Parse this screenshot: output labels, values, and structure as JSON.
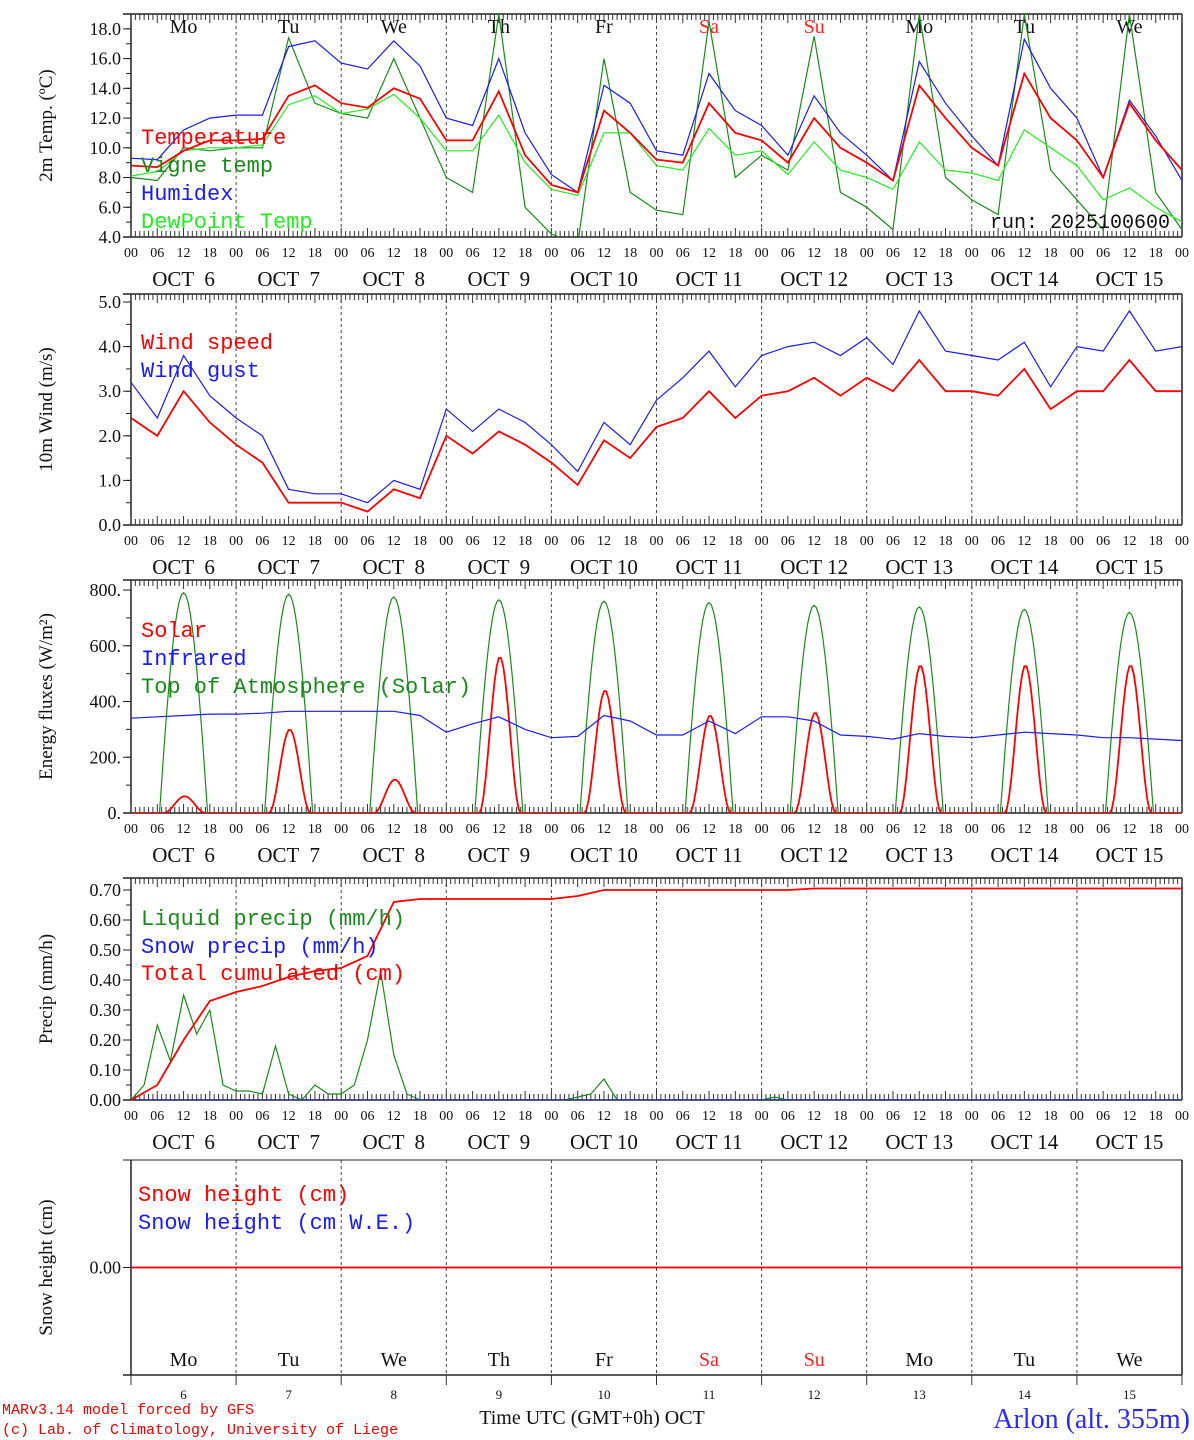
{
  "days": {
    "names": [
      "Mo",
      "Tu",
      "We",
      "Th",
      "Fr",
      "Sa",
      "Su",
      "Mo",
      "Tu",
      "We"
    ],
    "weekend": [
      false,
      false,
      false,
      false,
      false,
      true,
      true,
      false,
      false,
      false
    ],
    "dates": [
      "6",
      "7",
      "8",
      "9",
      "10",
      "11",
      "12",
      "13",
      "14",
      "15"
    ],
    "month": "OCT",
    "date_labels": [
      "OCT  6",
      "OCT  7",
      "OCT  8",
      "OCT  9",
      "OCT 10",
      "OCT 11",
      "OCT 12",
      "OCT 13",
      "OCT 14",
      "OCT 15"
    ]
  },
  "hour_labels": [
    "00",
    "06",
    "12",
    "18"
  ],
  "run_label": "run: 2025100600",
  "footer": {
    "model": "MARv3.14 model forced by GFS",
    "copyright": "(c) Lab. of Climatology, University of Liege",
    "xlabel": "Time UTC (GMT+0h) OCT",
    "station": "Arlon (alt. 355m)"
  },
  "colors": {
    "red": "#ff0000",
    "green": "#1a8a1a",
    "blue": "#1a1aff",
    "lime": "#22ee22",
    "weekend": "#ff2020",
    "day": "#111111"
  },
  "chart_data": [
    {
      "type": "line",
      "title": "",
      "ylabel": "2m Temp. (ºC)",
      "ylim": [
        4,
        19
      ],
      "yticks": [
        "4.0",
        "6.0",
        "8.0",
        "10.0",
        "12.0",
        "14.0",
        "16.0",
        "18.0"
      ],
      "ytick_values": [
        4,
        6,
        8,
        10,
        12,
        14,
        16,
        18
      ],
      "x_step_hours": 6,
      "series": [
        {
          "name": "Vigne temp",
          "color": "green",
          "values": [
            8.0,
            7.8,
            10.0,
            9.8,
            10.0,
            10.0,
            17.4,
            13.0,
            12.3,
            12.0,
            16.0,
            12.0,
            8.0,
            7.0,
            19.0,
            6.0,
            4.2,
            3.5,
            16.0,
            7.0,
            5.8,
            5.5,
            18.5,
            8.0,
            9.5,
            8.5,
            17.5,
            7.0,
            6.0,
            4.5,
            19.0,
            8.0,
            6.5,
            5.5,
            19.0,
            8.5,
            6.5,
            4.5,
            19.0,
            7.0,
            4.5
          ]
        },
        {
          "name": "DewPoint Temp",
          "color": "lime",
          "values": [
            8.1,
            8.4,
            9.8,
            10.0,
            10.0,
            10.2,
            12.9,
            13.5,
            12.3,
            12.6,
            13.6,
            12.0,
            9.8,
            9.8,
            12.2,
            9.0,
            7.2,
            6.8,
            11.0,
            11.0,
            8.8,
            8.5,
            11.3,
            9.5,
            9.8,
            8.2,
            10.4,
            8.5,
            8.0,
            7.2,
            10.4,
            8.5,
            8.3,
            7.8,
            11.2,
            10.0,
            8.8,
            6.5,
            7.3,
            6.0,
            5.0
          ]
        },
        {
          "name": "Humidex",
          "color": "blue",
          "values": [
            9.3,
            9.2,
            11.2,
            12.0,
            12.2,
            12.2,
            16.8,
            17.2,
            15.7,
            15.3,
            17.2,
            15.5,
            12.0,
            11.5,
            16.0,
            11.0,
            8.2,
            7.0,
            14.2,
            13.0,
            9.8,
            9.5,
            15.0,
            12.5,
            11.5,
            9.5,
            13.5,
            11.0,
            9.5,
            7.8,
            15.8,
            13.0,
            10.8,
            8.8,
            17.3,
            14.0,
            12.0,
            8.0,
            13.2,
            10.8,
            7.8
          ]
        },
        {
          "name": "Temperature",
          "color": "red",
          "values": [
            8.8,
            8.7,
            9.8,
            10.5,
            10.5,
            10.6,
            13.5,
            14.2,
            13.0,
            12.7,
            14.0,
            13.3,
            10.5,
            10.5,
            13.8,
            9.5,
            7.5,
            7.0,
            12.5,
            11.0,
            9.2,
            9.0,
            13.0,
            11.0,
            10.5,
            9.0,
            12.0,
            10.0,
            9.0,
            7.8,
            14.2,
            12.0,
            10.0,
            8.8,
            15.0,
            12.0,
            10.5,
            8.0,
            13.0,
            10.5,
            8.5
          ]
        }
      ],
      "legend_order": [
        "Temperature",
        "Vigne temp",
        "Humidex",
        "DewPoint Temp"
      ]
    },
    {
      "type": "line",
      "ylabel": "10m Wind (m/s)",
      "ylim": [
        0,
        5.18
      ],
      "yticks": [
        "0.0",
        "1.0",
        "2.0",
        "3.0",
        "4.0",
        "5.0"
      ],
      "ytick_values": [
        0,
        1,
        2,
        3,
        4,
        5
      ],
      "x_step_hours": 6,
      "series": [
        {
          "name": "Wind gust",
          "color": "blue",
          "values": [
            3.2,
            2.4,
            3.8,
            2.9,
            2.4,
            2.0,
            0.8,
            0.7,
            0.7,
            0.5,
            1.0,
            0.8,
            2.6,
            2.1,
            2.6,
            2.3,
            1.8,
            1.2,
            2.3,
            1.8,
            2.8,
            3.3,
            3.9,
            3.1,
            3.8,
            4.0,
            4.1,
            3.8,
            4.2,
            3.6,
            4.8,
            3.9,
            3.8,
            3.7,
            4.1,
            3.1,
            4.0,
            3.9,
            4.8,
            3.9,
            4.0
          ]
        },
        {
          "name": "Wind speed",
          "color": "red",
          "values": [
            2.4,
            2.0,
            3.0,
            2.3,
            1.8,
            1.4,
            0.5,
            0.5,
            0.5,
            0.3,
            0.8,
            0.6,
            2.0,
            1.6,
            2.1,
            1.8,
            1.4,
            0.9,
            1.9,
            1.5,
            2.2,
            2.4,
            3.0,
            2.4,
            2.9,
            3.0,
            3.3,
            2.9,
            3.3,
            3.0,
            3.7,
            3.0,
            3.0,
            2.9,
            3.5,
            2.6,
            3.0,
            3.0,
            3.7,
            3.0,
            3.0
          ]
        }
      ],
      "legend_order": [
        "Wind speed",
        "Wind gust"
      ]
    },
    {
      "type": "line",
      "ylabel": "Energy fluxes (W/m²)",
      "ylim": [
        0,
        836
      ],
      "yticks": [
        "0.",
        "200.",
        "400.",
        "600.",
        "800."
      ],
      "ytick_values": [
        0,
        200,
        400,
        600,
        800
      ],
      "x_step_hours": 6,
      "series": [
        {
          "name": "Top of Atmosphere (Solar)",
          "color": "green",
          "daily_peak": [
            790,
            785,
            775,
            765,
            760,
            755,
            745,
            740,
            730,
            720
          ],
          "daylight_hours": [
            6.5,
            17.5
          ],
          "shape_power": 1
        },
        {
          "name": "Solar",
          "color": "red",
          "daily_peak": [
            60,
            300,
            120,
            560,
            440,
            350,
            360,
            530,
            530,
            530
          ],
          "daylight_hours": [
            7.5,
            17
          ],
          "shape_power": 2
        },
        {
          "name": "Infrared",
          "color": "blue",
          "values": [
            340,
            345,
            350,
            355,
            355,
            358,
            365,
            365,
            365,
            365,
            365,
            350,
            290,
            320,
            345,
            300,
            270,
            275,
            350,
            330,
            280,
            280,
            330,
            285,
            345,
            345,
            330,
            280,
            275,
            265,
            285,
            275,
            270,
            280,
            290,
            285,
            280,
            270,
            270,
            265,
            260
          ]
        }
      ],
      "legend_order": [
        "Solar",
        "Infrared",
        "Top of Atmosphere (Solar)"
      ]
    },
    {
      "type": "line",
      "ylabel": "Precip (mm/h)",
      "ylim": [
        0,
        0.74
      ],
      "yticks": [
        "0.00",
        "0.10",
        "0.20",
        "0.30",
        "0.40",
        "0.50",
        "0.60",
        "0.70"
      ],
      "ytick_values": [
        0,
        0.1,
        0.2,
        0.3,
        0.4,
        0.5,
        0.6,
        0.7
      ],
      "series": [
        {
          "name": "Liquid precip (mm/h)",
          "color": "green",
          "x_step_hours": 3,
          "values": [
            0,
            0.05,
            0.25,
            0.13,
            0.35,
            0.22,
            0.3,
            0.05,
            0.03,
            0.03,
            0.02,
            0.18,
            0.02,
            0,
            0.05,
            0.02,
            0.02,
            0.05,
            0.2,
            0.43,
            0.15,
            0.02,
            0,
            0,
            0,
            0,
            0,
            0,
            0,
            0,
            0,
            0,
            0,
            0,
            0.01,
            0.02,
            0.07,
            0,
            0,
            0,
            0,
            0,
            0,
            0,
            0,
            0,
            0,
            0,
            0,
            0.01,
            0,
            0,
            0,
            0,
            0,
            0,
            0,
            0,
            0,
            0,
            0,
            0,
            0,
            0,
            0,
            0,
            0,
            0,
            0,
            0,
            0,
            0,
            0,
            0,
            0,
            0,
            0,
            0,
            0,
            0,
            0
          ]
        },
        {
          "name": "Snow precip (mm/h)",
          "color": "blue",
          "x_step_hours": 240,
          "values": [
            0,
            0
          ]
        },
        {
          "name": "Total cumulated (cm)",
          "color": "red",
          "x_step_hours": 6,
          "values": [
            0,
            0.05,
            0.2,
            0.33,
            0.36,
            0.38,
            0.41,
            0.43,
            0.44,
            0.48,
            0.66,
            0.67,
            0.67,
            0.67,
            0.67,
            0.67,
            0.67,
            0.68,
            0.7,
            0.7,
            0.7,
            0.7,
            0.7,
            0.7,
            0.7,
            0.7,
            0.705,
            0.705,
            0.705,
            0.705,
            0.705,
            0.705,
            0.705,
            0.705,
            0.705,
            0.705,
            0.705,
            0.705,
            0.705,
            0.705,
            0.705
          ]
        }
      ],
      "legend_order": [
        "Liquid precip (mm/h)",
        "Snow precip (mm/h)",
        "Total cumulated (cm)"
      ]
    },
    {
      "type": "line",
      "ylabel": "Snow height (cm)",
      "ylim": [
        -1,
        1
      ],
      "yticks": [
        "0.00"
      ],
      "ytick_values": [
        0
      ],
      "series": [
        {
          "name": "Snow height (cm W.E.)",
          "color": "blue",
          "x_step_hours": 240,
          "values": [
            0,
            0
          ]
        },
        {
          "name": "Snow height (cm)",
          "color": "red",
          "x_step_hours": 240,
          "values": [
            0,
            0
          ]
        }
      ],
      "legend_order": [
        "Snow height (cm)",
        "Snow height (cm W.E.)"
      ]
    }
  ]
}
